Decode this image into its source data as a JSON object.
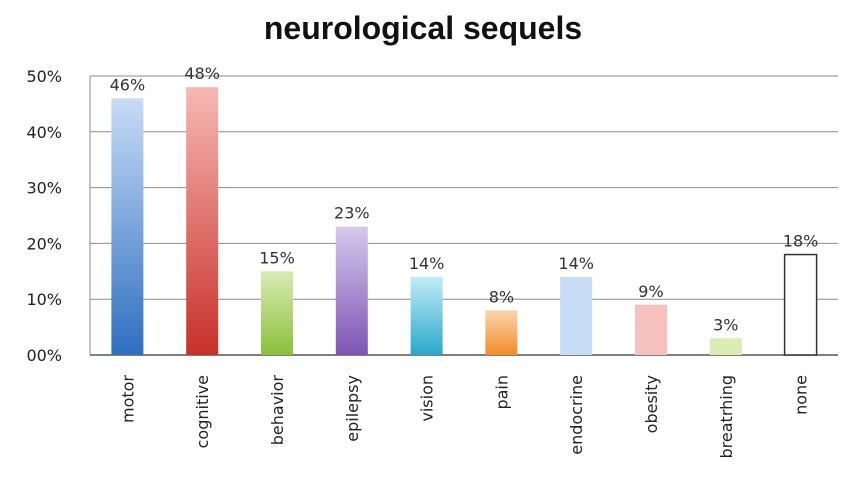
{
  "chart_data": {
    "type": "bar",
    "title": "neurological sequels",
    "categories": [
      "motor",
      "cognitive",
      "behavior",
      "epilepsy",
      "vision",
      "pain",
      "endocrine",
      "obesity",
      "breathing",
      "none"
    ],
    "category_labels": [
      "motor",
      "cognitive",
      "behavior",
      "epilepsy",
      "vision",
      "pain",
      "endocrine",
      "obesity",
      "breatrhing",
      "none"
    ],
    "values": [
      46,
      48,
      15,
      23,
      14,
      8,
      14,
      9,
      3,
      18
    ],
    "data_labels": [
      "46%",
      "48%",
      "15%",
      "23%",
      "14%",
      "8%",
      "14%",
      "9%",
      "3%",
      "18%"
    ],
    "ylim": [
      0,
      50
    ],
    "yticks": [
      0,
      10,
      20,
      30,
      40,
      50
    ],
    "ytick_labels": [
      "00%",
      "10%",
      "20%",
      "30%",
      "40%",
      "50%"
    ],
    "xlabel": "",
    "ylabel": "",
    "grid": true,
    "legend": "none",
    "colors": [
      [
        "#c8dcf6",
        "#2e6fc0"
      ],
      [
        "#f6b8b4",
        "#c8302a"
      ],
      [
        "#d9ecb4",
        "#8cbf3a"
      ],
      [
        "#d6c8ec",
        "#7e55b4"
      ],
      [
        "#c2ecf6",
        "#29a8c9"
      ],
      [
        "#fbd5ae",
        "#f28c26"
      ],
      [
        "#c8dcf6",
        "#c8dcf6"
      ],
      [
        "#f6c2c0",
        "#f6c2c0"
      ],
      [
        "#d9ecb4",
        "#d9ecb4"
      ],
      [
        "#ffffff",
        "#ffffff"
      ]
    ],
    "outlined_bars": [
      "none"
    ]
  }
}
